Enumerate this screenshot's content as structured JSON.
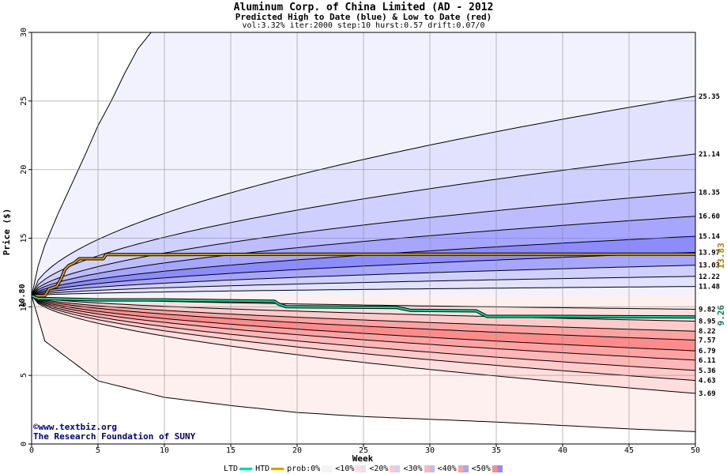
{
  "title": "Aluminum Corp. of China Limited (AD - 2012",
  "subtitle": "Predicted High to Date (blue) &  Low to Date (red)",
  "params": "vol:3.32% iter:2000 step:10 hurst:0.57 drift:0.07/0",
  "credit_line1": "©www.textbiz.org",
  "credit_line2": "The Research Foundation of SUNY",
  "legend": {
    "ltd": "LTD",
    "htd": "HTD",
    "prob": "prob:0%",
    "p10": "<10%",
    "p20": "<20%",
    "p30": "<30%",
    "p40": "<40%",
    "p50": "<50%"
  },
  "colors": {
    "ltd": "#00e0a0",
    "htd": "#e0a000",
    "blue_bands": [
      "#f2f2ff",
      "#e2e2ff",
      "#d0d0ff",
      "#bcbcff",
      "#a6a6ff",
      "#8c8cff",
      "#7878ff"
    ],
    "red_bands": [
      "#fff0f0",
      "#ffdede",
      "#ffcaca",
      "#ffb6b6",
      "#ffa2a2",
      "#ff8c8c",
      "#ff7878"
    ]
  },
  "chart_data": {
    "type": "area",
    "title": "Aluminum Corp. of China Limited (AD - 2012",
    "xlabel": "Week",
    "ylabel": "Price ($)",
    "xlim": [
      0,
      50
    ],
    "ylim": [
      0,
      30
    ],
    "xticks": [
      0,
      5,
      10,
      15,
      20,
      25,
      30,
      35,
      40,
      45,
      50
    ],
    "yticks": [
      0,
      5,
      10,
      15,
      20,
      25,
      30
    ],
    "grid": true,
    "start_price": 10.8,
    "start_price_label": "10.80",
    "upper_contours": [
      25.35,
      21.14,
      18.35,
      16.6,
      15.14,
      13.97,
      13.03,
      12.22,
      11.48
    ],
    "lower_contours": [
      9.82,
      8.95,
      8.22,
      7.57,
      6.79,
      6.11,
      5.36,
      4.63,
      3.69
    ],
    "upper_contour_labels": [
      "25.35",
      "21.14",
      "18.35",
      "16.60",
      "15.14",
      "13.97",
      "13.03",
      "12.22",
      "11.48"
    ],
    "lower_contour_labels": [
      "9.82",
      "8.95",
      "8.22",
      "7.57",
      "6.79",
      "6.11",
      "5.36",
      "4.63",
      "3.69"
    ],
    "outer_upper": {
      "x": [
        0,
        0.5,
        1,
        2,
        3,
        4,
        5,
        6,
        7,
        8,
        9
      ],
      "y": [
        10.8,
        13,
        14.5,
        16.8,
        18.9,
        21,
        23.2,
        25,
        27,
        28.8,
        30
      ]
    },
    "outer_lower": {
      "x": [
        0,
        1,
        5,
        10,
        15,
        20,
        25,
        30,
        35,
        40,
        45,
        50
      ],
      "y": [
        10.8,
        7.5,
        4.6,
        3.4,
        2.8,
        2.3,
        2.0,
        1.8,
        1.6,
        1.35,
        1.1,
        0.9
      ]
    },
    "htd": {
      "name": "HTD",
      "value_label": "13.83",
      "x": [
        0,
        1,
        1.3,
        1.9,
        2.2,
        2.5,
        2.8,
        3.2,
        3.6,
        5.4,
        5.6,
        10,
        20,
        30,
        40,
        50
      ],
      "y": [
        10.8,
        10.8,
        11.3,
        11.5,
        12.0,
        12.7,
        13.0,
        13.2,
        13.5,
        13.5,
        13.8,
        13.8,
        13.83,
        13.83,
        13.83,
        13.83
      ]
    },
    "ltd": {
      "name": "LTD",
      "value_label": "9.26",
      "x": [
        0,
        0.5,
        1,
        5,
        10,
        18.3,
        18.6,
        19.2,
        27.5,
        28.5,
        33.5,
        34.3,
        40,
        50
      ],
      "y": [
        10.8,
        10.6,
        10.6,
        10.5,
        10.5,
        10.4,
        10.2,
        10.0,
        9.95,
        9.75,
        9.7,
        9.3,
        9.3,
        9.26
      ]
    }
  }
}
